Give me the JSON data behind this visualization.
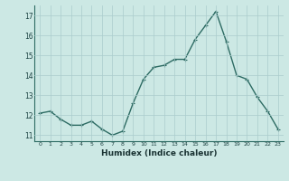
{
  "x": [
    0,
    1,
    2,
    3,
    4,
    5,
    6,
    7,
    8,
    9,
    10,
    11,
    12,
    13,
    14,
    15,
    16,
    17,
    18,
    19,
    20,
    21,
    22,
    23
  ],
  "y": [
    12.1,
    12.2,
    11.8,
    11.5,
    11.5,
    11.7,
    11.3,
    11.0,
    11.2,
    12.6,
    13.8,
    14.4,
    14.5,
    14.8,
    14.8,
    15.8,
    16.5,
    17.2,
    15.7,
    14.0,
    13.8,
    12.9,
    12.2,
    11.3
  ],
  "xlabel": "Humidex (Indice chaleur)",
  "xlim": [
    -0.5,
    23.5
  ],
  "ylim": [
    10.7,
    17.5
  ],
  "yticks": [
    11,
    12,
    13,
    14,
    15,
    16,
    17
  ],
  "xticks": [
    0,
    1,
    2,
    3,
    4,
    5,
    6,
    7,
    8,
    9,
    10,
    11,
    12,
    13,
    14,
    15,
    16,
    17,
    18,
    19,
    20,
    21,
    22,
    23
  ],
  "bg_color": "#cce8e4",
  "line_color": "#2d6b63",
  "grid_color": "#aacccc",
  "marker_size": 2.5,
  "line_width": 1.0
}
